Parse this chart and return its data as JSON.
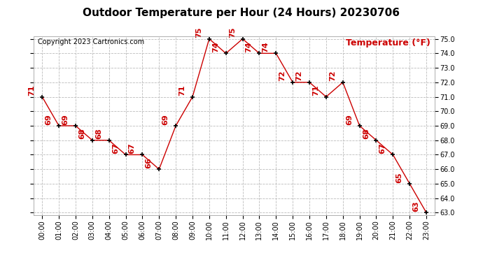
{
  "title": "Outdoor Temperature per Hour (24 Hours) 20230706",
  "copyright_text": "Copyright 2023 Cartronics.com",
  "legend_text": "Temperature (°F)",
  "hours": [
    "00:00",
    "01:00",
    "02:00",
    "03:00",
    "04:00",
    "05:00",
    "06:00",
    "07:00",
    "08:00",
    "09:00",
    "10:00",
    "11:00",
    "12:00",
    "13:00",
    "14:00",
    "15:00",
    "16:00",
    "17:00",
    "18:00",
    "19:00",
    "20:00",
    "21:00",
    "22:00",
    "23:00"
  ],
  "temperatures": [
    71,
    69,
    69,
    68,
    68,
    67,
    67,
    66,
    69,
    71,
    75,
    74,
    75,
    74,
    74,
    72,
    72,
    71,
    72,
    69,
    68,
    67,
    65,
    63
  ],
  "line_color": "#cc0000",
  "marker_color": "#000000",
  "label_color": "#cc0000",
  "title_fontsize": 11,
  "copyright_fontsize": 7,
  "legend_fontsize": 9,
  "label_fontsize": 8,
  "tick_fontsize": 7,
  "ylim_min": 63.0,
  "ylim_max": 75.0,
  "bg_color": "#ffffff",
  "grid_color": "#bbbbbb"
}
